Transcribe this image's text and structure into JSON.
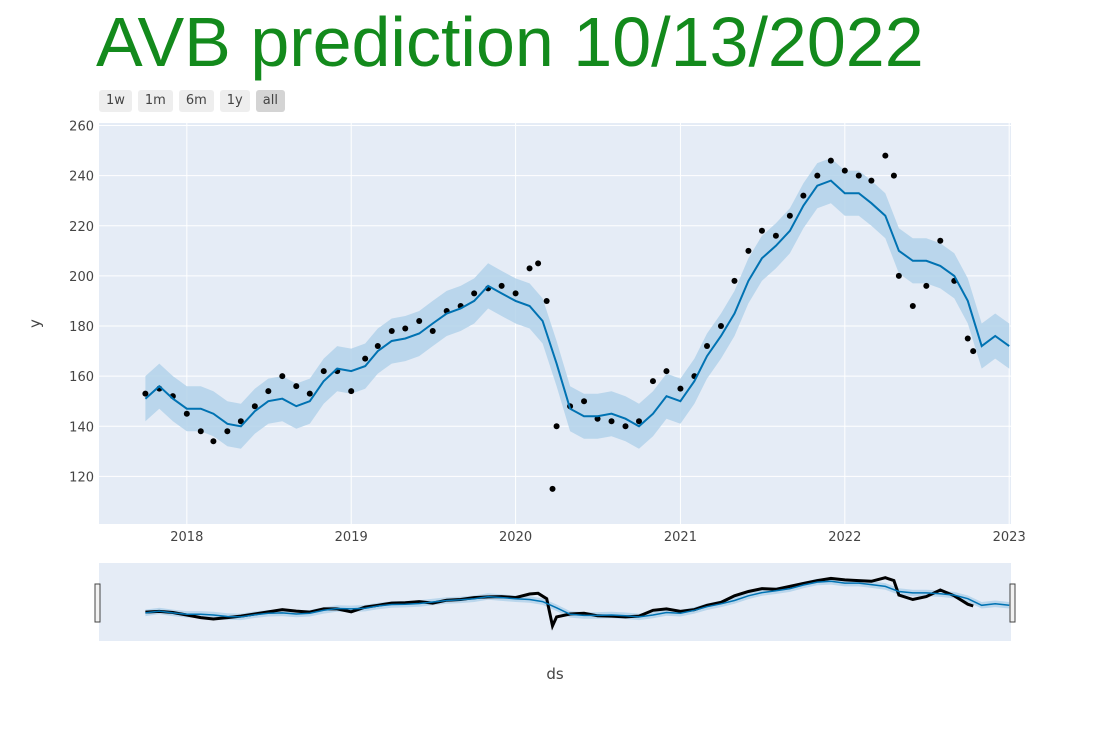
{
  "title": "AVB prediction 10/13/2022",
  "range_buttons": [
    {
      "label": "1w",
      "active": false
    },
    {
      "label": "1m",
      "active": false
    },
    {
      "label": "6m",
      "active": false
    },
    {
      "label": "1y",
      "active": false
    },
    {
      "label": "all",
      "active": true
    }
  ],
  "colors": {
    "plot_bg": "#e5ecf6",
    "forecast_line": "#0072b2",
    "band": "#b3d2ea",
    "points": "#000000",
    "grid": "#ffffff"
  },
  "chart_data": {
    "type": "line",
    "xlabel": "ds",
    "ylabel": "y",
    "x_ticks": [
      "2018",
      "2019",
      "2020",
      "2021",
      "2022",
      "2023"
    ],
    "y_ticks": [
      120,
      140,
      160,
      180,
      200,
      220,
      240,
      260
    ],
    "xlim": [
      "2017-06-20",
      "2023-01-05"
    ],
    "ylim": [
      101,
      261
    ],
    "legend": "none",
    "grid": true,
    "range_slider": true,
    "series": [
      {
        "role": "observed",
        "points": [
          [
            "2017-10-01",
            153
          ],
          [
            "2017-11-01",
            155
          ],
          [
            "2017-12-01",
            152
          ],
          [
            "2018-01-01",
            145
          ],
          [
            "2018-02-01",
            138
          ],
          [
            "2018-03-01",
            134
          ],
          [
            "2018-04-01",
            138
          ],
          [
            "2018-05-01",
            142
          ],
          [
            "2018-06-01",
            148
          ],
          [
            "2018-07-01",
            154
          ],
          [
            "2018-08-01",
            160
          ],
          [
            "2018-09-01",
            156
          ],
          [
            "2018-10-01",
            153
          ],
          [
            "2018-11-01",
            162
          ],
          [
            "2018-12-01",
            162
          ],
          [
            "2019-01-01",
            154
          ],
          [
            "2019-02-01",
            167
          ],
          [
            "2019-03-01",
            172
          ],
          [
            "2019-04-01",
            178
          ],
          [
            "2019-05-01",
            179
          ],
          [
            "2019-06-01",
            182
          ],
          [
            "2019-07-01",
            178
          ],
          [
            "2019-08-01",
            186
          ],
          [
            "2019-09-01",
            188
          ],
          [
            "2019-10-01",
            193
          ],
          [
            "2019-11-01",
            195
          ],
          [
            "2019-12-01",
            196
          ],
          [
            "2020-01-01",
            193
          ],
          [
            "2020-02-01",
            203
          ],
          [
            "2020-02-20",
            205
          ],
          [
            "2020-03-10",
            190
          ],
          [
            "2020-03-23",
            115
          ],
          [
            "2020-04-01",
            140
          ],
          [
            "2020-05-01",
            148
          ],
          [
            "2020-06-01",
            150
          ],
          [
            "2020-07-01",
            143
          ],
          [
            "2020-08-01",
            142
          ],
          [
            "2020-09-01",
            140
          ],
          [
            "2020-10-01",
            142
          ],
          [
            "2020-11-01",
            158
          ],
          [
            "2020-12-01",
            162
          ],
          [
            "2021-01-01",
            155
          ],
          [
            "2021-02-01",
            160
          ],
          [
            "2021-03-01",
            172
          ],
          [
            "2021-04-01",
            180
          ],
          [
            "2021-05-01",
            198
          ],
          [
            "2021-06-01",
            210
          ],
          [
            "2021-07-01",
            218
          ],
          [
            "2021-08-01",
            216
          ],
          [
            "2021-09-01",
            224
          ],
          [
            "2021-10-01",
            232
          ],
          [
            "2021-11-01",
            240
          ],
          [
            "2021-12-01",
            246
          ],
          [
            "2022-01-01",
            242
          ],
          [
            "2022-02-01",
            240
          ],
          [
            "2022-03-01",
            238
          ],
          [
            "2022-04-01",
            248
          ],
          [
            "2022-04-20",
            240
          ],
          [
            "2022-05-01",
            200
          ],
          [
            "2022-06-01",
            188
          ],
          [
            "2022-07-01",
            196
          ],
          [
            "2022-08-01",
            214
          ],
          [
            "2022-09-01",
            198
          ],
          [
            "2022-10-01",
            175
          ],
          [
            "2022-10-13",
            170
          ]
        ]
      },
      {
        "role": "forecast",
        "points": [
          [
            "2017-10-01",
            151
          ],
          [
            "2017-11-01",
            156
          ],
          [
            "2017-12-01",
            151
          ],
          [
            "2018-01-01",
            147
          ],
          [
            "2018-02-01",
            147
          ],
          [
            "2018-03-01",
            145
          ],
          [
            "2018-04-01",
            141
          ],
          [
            "2018-05-01",
            140
          ],
          [
            "2018-06-01",
            146
          ],
          [
            "2018-07-01",
            150
          ],
          [
            "2018-08-01",
            151
          ],
          [
            "2018-09-01",
            148
          ],
          [
            "2018-10-01",
            150
          ],
          [
            "2018-11-01",
            158
          ],
          [
            "2018-12-01",
            163
          ],
          [
            "2019-01-01",
            162
          ],
          [
            "2019-02-01",
            164
          ],
          [
            "2019-03-01",
            170
          ],
          [
            "2019-04-01",
            174
          ],
          [
            "2019-05-01",
            175
          ],
          [
            "2019-06-01",
            177
          ],
          [
            "2019-07-01",
            181
          ],
          [
            "2019-08-01",
            185
          ],
          [
            "2019-09-01",
            187
          ],
          [
            "2019-10-01",
            190
          ],
          [
            "2019-11-01",
            196
          ],
          [
            "2019-12-01",
            193
          ],
          [
            "2020-01-01",
            190
          ],
          [
            "2020-02-01",
            188
          ],
          [
            "2020-03-01",
            182
          ],
          [
            "2020-04-01",
            165
          ],
          [
            "2020-05-01",
            147
          ],
          [
            "2020-06-01",
            144
          ],
          [
            "2020-07-01",
            144
          ],
          [
            "2020-08-01",
            145
          ],
          [
            "2020-09-01",
            143
          ],
          [
            "2020-10-01",
            140
          ],
          [
            "2020-11-01",
            145
          ],
          [
            "2020-12-01",
            152
          ],
          [
            "2021-01-01",
            150
          ],
          [
            "2021-02-01",
            158
          ],
          [
            "2021-03-01",
            168
          ],
          [
            "2021-04-01",
            176
          ],
          [
            "2021-05-01",
            185
          ],
          [
            "2021-06-01",
            198
          ],
          [
            "2021-07-01",
            207
          ],
          [
            "2021-08-01",
            212
          ],
          [
            "2021-09-01",
            218
          ],
          [
            "2021-10-01",
            228
          ],
          [
            "2021-11-01",
            236
          ],
          [
            "2021-12-01",
            238
          ],
          [
            "2022-01-01",
            233
          ],
          [
            "2022-02-01",
            233
          ],
          [
            "2022-03-01",
            229
          ],
          [
            "2022-04-01",
            224
          ],
          [
            "2022-05-01",
            210
          ],
          [
            "2022-06-01",
            206
          ],
          [
            "2022-07-01",
            206
          ],
          [
            "2022-08-01",
            204
          ],
          [
            "2022-09-01",
            200
          ],
          [
            "2022-10-01",
            190
          ],
          [
            "2022-11-01",
            172
          ],
          [
            "2022-12-01",
            176
          ],
          [
            "2023-01-01",
            172
          ]
        ]
      },
      {
        "role": "uncertainty_band",
        "band_width": 9
      }
    ]
  }
}
